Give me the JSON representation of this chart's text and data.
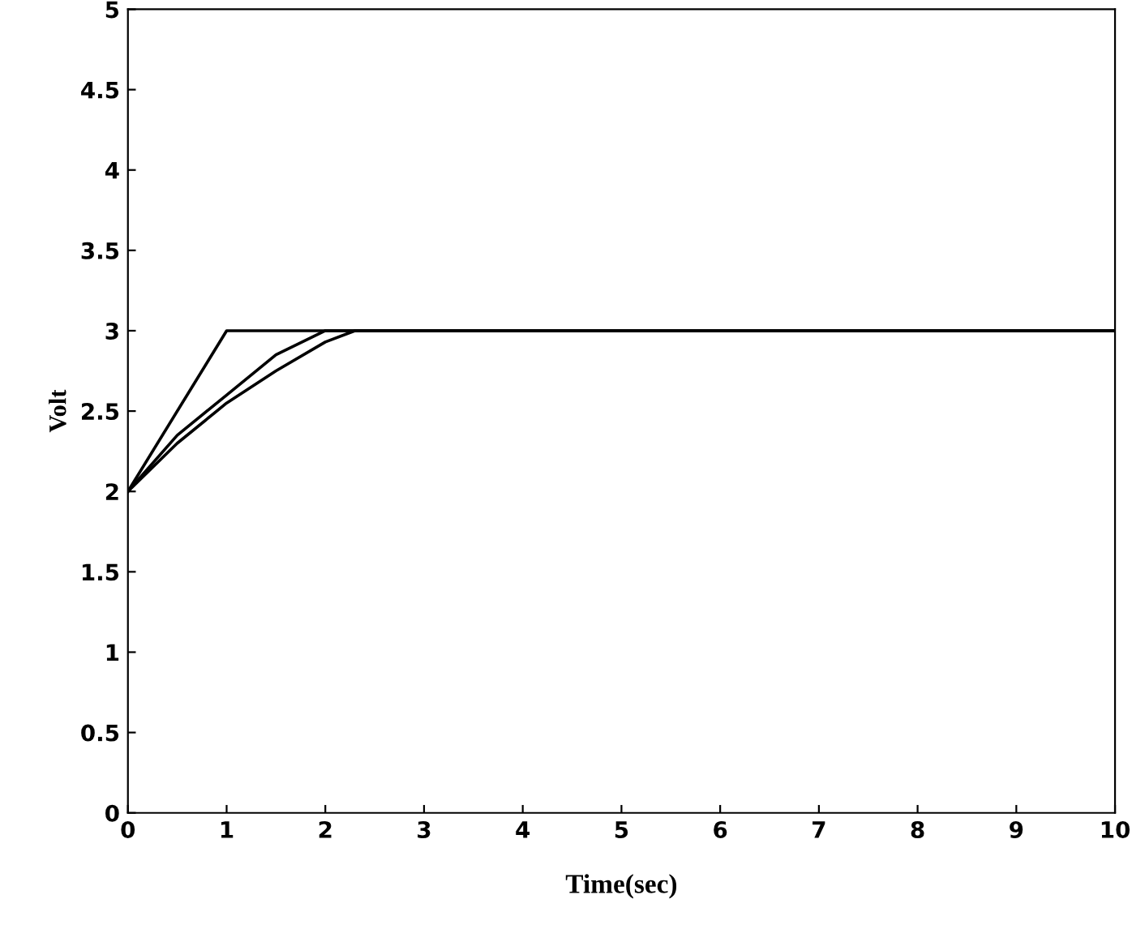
{
  "chart_data": {
    "type": "line",
    "xlabel": "Time(sec)",
    "ylabel": "Volt",
    "xlim": [
      0,
      10
    ],
    "ylim": [
      0,
      5
    ],
    "xticks": [
      0,
      1,
      2,
      3,
      4,
      5,
      6,
      7,
      8,
      9,
      10
    ],
    "yticks": [
      0,
      0.5,
      1,
      1.5,
      2,
      2.5,
      3,
      3.5,
      4,
      4.5,
      5
    ],
    "grid": false,
    "legend": false,
    "marker": "none",
    "line_style": "solid",
    "series": [
      {
        "color": "#000000",
        "x": [
          0,
          1,
          10
        ],
        "values": [
          2,
          3,
          3
        ]
      },
      {
        "color": "#000000",
        "x": [
          0,
          0.5,
          1,
          1.5,
          2,
          10
        ],
        "values": [
          2,
          2.35,
          2.6,
          2.85,
          3,
          3
        ]
      },
      {
        "color": "#000000",
        "x": [
          0,
          0.5,
          1,
          1.5,
          2,
          2.3,
          10
        ],
        "values": [
          2,
          2.3,
          2.55,
          2.75,
          2.93,
          3,
          3
        ]
      }
    ]
  }
}
